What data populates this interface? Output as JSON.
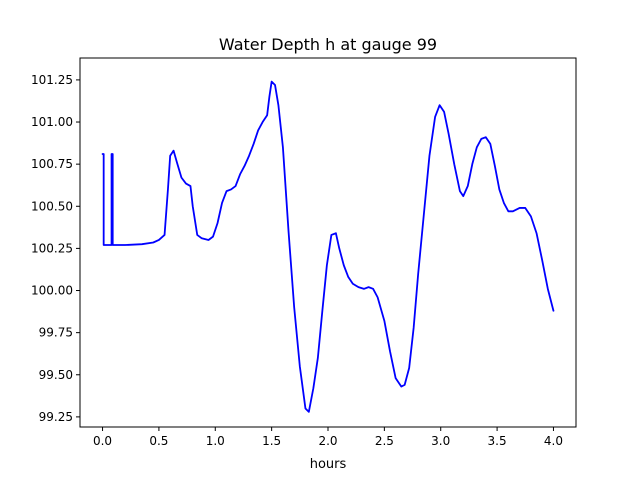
{
  "chart_data": {
    "type": "line",
    "title": "Water Depth h at gauge 99",
    "xlabel": "hours",
    "ylabel": "",
    "xlim": [
      -0.2,
      4.2
    ],
    "ylim": [
      99.19,
      101.38
    ],
    "xticks": [
      0.0,
      0.5,
      1.0,
      1.5,
      2.0,
      2.5,
      3.0,
      3.5,
      4.0
    ],
    "xtick_labels": [
      "0.0",
      "0.5",
      "1.0",
      "1.5",
      "2.0",
      "2.5",
      "3.0",
      "3.5",
      "4.0"
    ],
    "yticks": [
      99.25,
      99.5,
      99.75,
      100.0,
      100.25,
      100.5,
      100.75,
      101.0,
      101.25
    ],
    "ytick_labels": [
      "99.25",
      "99.50",
      "99.75",
      "100.00",
      "100.25",
      "100.50",
      "100.75",
      "101.00",
      "101.25"
    ],
    "grid": false,
    "color": "#0000ff",
    "series": [
      {
        "x": [
          0.0,
          0.01,
          0.01,
          0.08,
          0.08,
          0.09,
          0.09,
          0.2,
          0.35,
          0.45,
          0.5,
          0.55,
          0.58,
          0.6,
          0.63,
          0.66,
          0.7,
          0.74,
          0.78,
          0.8,
          0.84,
          0.88,
          0.94,
          0.98,
          1.02,
          1.06,
          1.1,
          1.14,
          1.18,
          1.22,
          1.26,
          1.3,
          1.34,
          1.38,
          1.42,
          1.46,
          1.48,
          1.5,
          1.53,
          1.56,
          1.6,
          1.65,
          1.7,
          1.75,
          1.8,
          1.83,
          1.87,
          1.91,
          1.95,
          1.99,
          2.03,
          2.07,
          2.1,
          2.14,
          2.18,
          2.22,
          2.27,
          2.32,
          2.36,
          2.4,
          2.44,
          2.5,
          2.55,
          2.6,
          2.65,
          2.68,
          2.72,
          2.76,
          2.8,
          2.85,
          2.9,
          2.95,
          2.99,
          3.03,
          3.07,
          3.12,
          3.17,
          3.2,
          3.24,
          3.28,
          3.32,
          3.36,
          3.4,
          3.44,
          3.48,
          3.52,
          3.56,
          3.6,
          3.64,
          3.7,
          3.75,
          3.8,
          3.85,
          3.9,
          3.95,
          4.0
        ],
        "y": [
          100.81,
          100.81,
          100.27,
          100.27,
          100.81,
          100.81,
          100.27,
          100.27,
          100.275,
          100.285,
          100.3,
          100.33,
          100.6,
          100.8,
          100.83,
          100.76,
          100.67,
          100.635,
          100.62,
          100.5,
          100.33,
          100.31,
          100.3,
          100.32,
          100.4,
          100.52,
          100.59,
          100.6,
          100.62,
          100.69,
          100.74,
          100.8,
          100.87,
          100.95,
          101.0,
          101.04,
          101.15,
          101.24,
          101.22,
          101.1,
          100.85,
          100.35,
          99.9,
          99.55,
          99.3,
          99.28,
          99.42,
          99.6,
          99.88,
          100.15,
          100.33,
          100.34,
          100.25,
          100.15,
          100.08,
          100.04,
          100.02,
          100.01,
          100.02,
          100.01,
          99.96,
          99.82,
          99.64,
          99.48,
          99.43,
          99.44,
          99.54,
          99.78,
          100.1,
          100.45,
          100.8,
          101.03,
          101.1,
          101.06,
          100.93,
          100.75,
          100.59,
          100.56,
          100.62,
          100.75,
          100.85,
          100.9,
          100.91,
          100.87,
          100.74,
          100.6,
          100.52,
          100.47,
          100.47,
          100.49,
          100.49,
          100.44,
          100.34,
          100.18,
          100.01,
          99.88
        ]
      }
    ]
  }
}
